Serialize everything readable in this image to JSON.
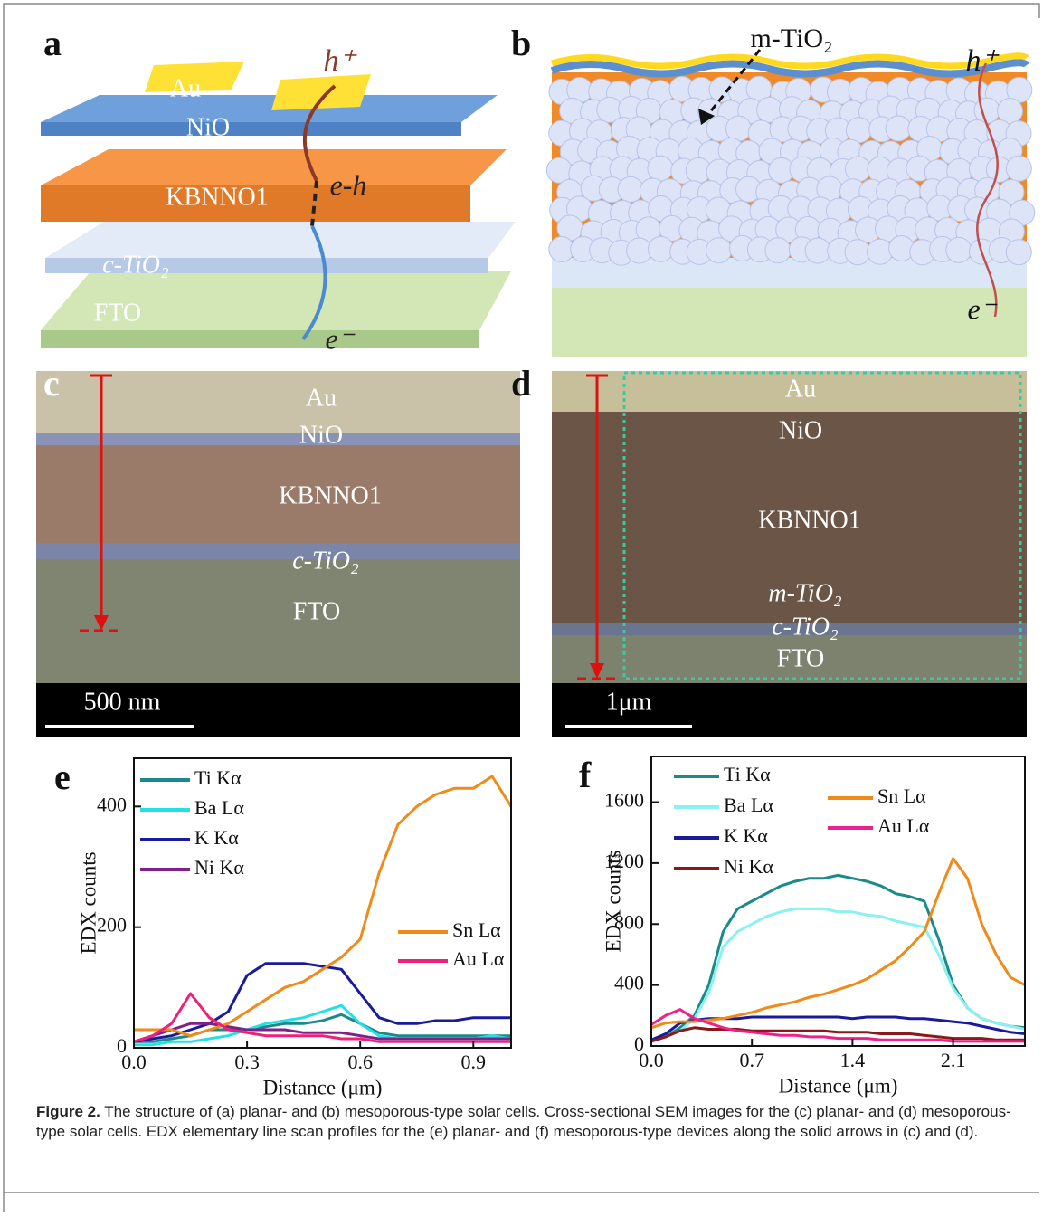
{
  "panels": {
    "a": {
      "letter": "a",
      "au": "Au",
      "nio": "NiO",
      "kbnno": "KBNNO1",
      "ctio2": "c-TiO₂",
      "fto": "FTO",
      "hole": "h⁺",
      "eh": "e-h",
      "electron": "e⁻"
    },
    "b": {
      "letter": "b",
      "mtio2": "m-TiO₂",
      "hole": "h⁺",
      "electron": "e⁻"
    },
    "c": {
      "letter": "c",
      "au": "Au",
      "nio": "NiO",
      "kbnno": "KBNNO1",
      "ctio2": "c-TiO₂",
      "fto": "FTO",
      "scale": "500 nm"
    },
    "d": {
      "letter": "d",
      "au": "Au",
      "nio": "NiO",
      "kbnno": "KBNNO1",
      "mtio2": "m-TiO₂",
      "ctio2": "c-TiO₂",
      "fto": "FTO",
      "scale": "1μm"
    }
  },
  "chart_data": [
    {
      "type": "line",
      "panel": "e",
      "xlabel": "Distance (μm)",
      "ylabel": "EDX counts",
      "x": [
        0,
        0.05,
        0.1,
        0.15,
        0.2,
        0.25,
        0.3,
        0.35,
        0.4,
        0.45,
        0.5,
        0.55,
        0.6,
        0.65,
        0.7,
        0.75,
        0.8,
        0.85,
        0.9,
        0.95,
        1.0
      ],
      "xlim": [
        0,
        1.0
      ],
      "xticks": [
        {
          "value": 0,
          "label": "0.0"
        },
        0.3,
        0.6,
        0.9
      ],
      "ylim": [
        0,
        480
      ],
      "yticks": [
        0,
        200,
        400
      ],
      "series": [
        {
          "name": "Ti Kα",
          "color": "#1a8a8a",
          "values": [
            10,
            10,
            15,
            20,
            30,
            30,
            30,
            35,
            40,
            40,
            45,
            55,
            40,
            25,
            20,
            20,
            20,
            20,
            20,
            20,
            20
          ]
        },
        {
          "name": "Ba Lα",
          "color": "#22e0e6",
          "values": [
            5,
            5,
            10,
            10,
            15,
            20,
            30,
            40,
            45,
            50,
            60,
            70,
            40,
            20,
            15,
            15,
            15,
            15,
            15,
            20,
            15
          ]
        },
        {
          "name": "K Kα",
          "color": "#1a1a9c",
          "values": [
            10,
            15,
            20,
            30,
            40,
            60,
            120,
            140,
            140,
            140,
            135,
            130,
            90,
            50,
            40,
            40,
            45,
            45,
            50,
            50,
            50
          ]
        },
        {
          "name": "Ni Kα",
          "color": "#80208a",
          "values": [
            10,
            20,
            30,
            40,
            40,
            35,
            30,
            30,
            30,
            25,
            25,
            25,
            20,
            15,
            15,
            15,
            15,
            15,
            15,
            15,
            15
          ]
        },
        {
          "name": "Sn Lα",
          "color": "#f08a1a",
          "values": [
            30,
            30,
            30,
            20,
            30,
            40,
            60,
            80,
            100,
            110,
            130,
            150,
            180,
            290,
            370,
            400,
            420,
            430,
            430,
            450,
            400
          ]
        },
        {
          "name": "Au Lα",
          "color": "#f0207a",
          "values": [
            10,
            20,
            40,
            90,
            50,
            30,
            25,
            20,
            20,
            20,
            20,
            15,
            15,
            10,
            10,
            10,
            10,
            10,
            10,
            10,
            10
          ]
        }
      ]
    },
    {
      "type": "line",
      "panel": "f",
      "xlabel": "Distance (μm)",
      "ylabel": "EDX counts",
      "x": [
        0,
        0.1,
        0.2,
        0.3,
        0.4,
        0.5,
        0.6,
        0.7,
        0.8,
        0.9,
        1.0,
        1.1,
        1.2,
        1.3,
        1.4,
        1.5,
        1.6,
        1.7,
        1.8,
        1.9,
        2.0,
        2.1,
        2.2,
        2.3,
        2.4,
        2.5,
        2.6
      ],
      "xlim": [
        0,
        2.6
      ],
      "xticks": [
        {
          "value": 0,
          "label": "0.0"
        },
        0.7,
        1.4,
        2.1
      ],
      "ylim": [
        0,
        1900
      ],
      "yticks": [
        0,
        400,
        800,
        1200,
        1600
      ],
      "series": [
        {
          "name": "Ti Kα",
          "color": "#1a8a8a",
          "values": [
            40,
            60,
            120,
            200,
            400,
            750,
            900,
            950,
            1000,
            1050,
            1080,
            1100,
            1100,
            1120,
            1100,
            1080,
            1050,
            1000,
            980,
            950,
            700,
            400,
            250,
            180,
            150,
            130,
            120
          ]
        },
        {
          "name": "Ba Lα",
          "color": "#8af0f0",
          "values": [
            40,
            60,
            100,
            180,
            350,
            650,
            750,
            800,
            850,
            880,
            900,
            900,
            900,
            880,
            880,
            860,
            850,
            820,
            800,
            780,
            600,
            380,
            250,
            180,
            150,
            130,
            110
          ]
        },
        {
          "name": "K Kα",
          "color": "#1a1a9c",
          "values": [
            40,
            80,
            150,
            170,
            180,
            180,
            180,
            190,
            190,
            190,
            190,
            190,
            190,
            190,
            180,
            190,
            190,
            190,
            180,
            180,
            170,
            160,
            150,
            130,
            110,
            90,
            80
          ]
        },
        {
          "name": "Ni Kα",
          "color": "#8a1a1a",
          "values": [
            30,
            60,
            100,
            120,
            110,
            110,
            110,
            100,
            100,
            100,
            100,
            100,
            100,
            90,
            90,
            90,
            80,
            80,
            80,
            70,
            60,
            50,
            50,
            50,
            40,
            40,
            40
          ]
        },
        {
          "name": "Sn Lα",
          "color": "#f08a1a",
          "values": [
            120,
            150,
            160,
            160,
            170,
            180,
            200,
            220,
            250,
            270,
            290,
            320,
            340,
            370,
            400,
            440,
            500,
            560,
            650,
            750,
            1000,
            1230,
            1100,
            800,
            600,
            450,
            400
          ]
        },
        {
          "name": "Au Lα",
          "color": "#f0208a",
          "values": [
            140,
            200,
            240,
            180,
            150,
            120,
            100,
            90,
            80,
            70,
            70,
            60,
            60,
            50,
            50,
            50,
            40,
            40,
            40,
            40,
            40,
            30,
            30,
            30,
            30,
            30,
            30
          ]
        }
      ]
    }
  ],
  "caption": {
    "label": "Figure 2.",
    "text": "The structure of (a) planar- and (b) mesoporous-type solar cells. Cross-sectional SEM images for the (c) planar- and (d) mesoporous-type solar cells. EDX elementary line scan profiles for the (e) planar- and (f) mesoporous-type devices along the solid arrows in (c) and (d)."
  }
}
